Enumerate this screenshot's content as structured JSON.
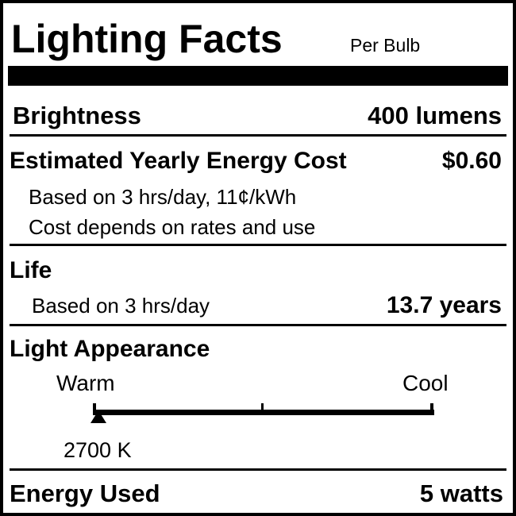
{
  "title": "Lighting Facts",
  "subtitle": "Per Bulb",
  "brightness": {
    "label": "Brightness",
    "value": "400 lumens"
  },
  "energy_cost": {
    "label": "Estimated Yearly Energy Cost",
    "value": "$0.60",
    "note1": "Based on 3 hrs/day, 11¢/kWh",
    "note2": "Cost depends on rates and use"
  },
  "life": {
    "label": "Life",
    "note": "Based on 3 hrs/day",
    "value": "13.7 years"
  },
  "appearance": {
    "label": "Light Appearance",
    "warm": "Warm",
    "cool": "Cool",
    "value": "2700 K",
    "position_fraction": 0.02
  },
  "energy_used": {
    "label": "Energy Used",
    "value": "5 watts"
  }
}
